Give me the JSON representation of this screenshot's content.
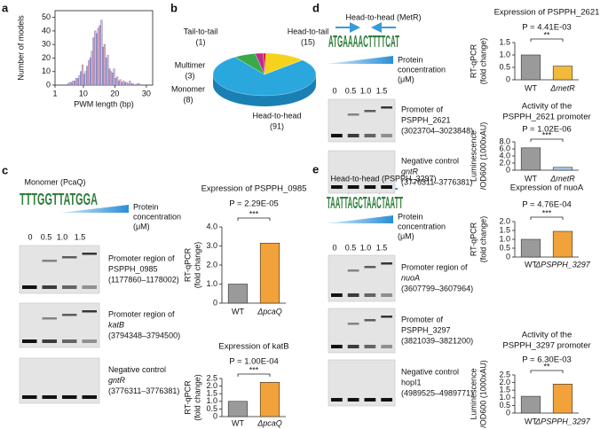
{
  "panel_labels": [
    "a",
    "b",
    "c",
    "d",
    "e"
  ],
  "chart_data": [
    {
      "type": "histogram",
      "ylabel": "Number of models",
      "xlabel": "PWM length (bp)",
      "bins": [
        5,
        6,
        7,
        8,
        9,
        10,
        11,
        12,
        13,
        14,
        15,
        16,
        17,
        18,
        19,
        20,
        21,
        22,
        23,
        24,
        25,
        26,
        27,
        28,
        29
      ],
      "series": [
        {
          "color": "#9aa6d8",
          "values": [
            1,
            2,
            3,
            5,
            10,
            8,
            14,
            20,
            35,
            38,
            44,
            28,
            20,
            12,
            9,
            5,
            3,
            2,
            2,
            1,
            1,
            0,
            1,
            0
          ]
        },
        {
          "color": "#f4b6c4",
          "values": [
            2,
            3,
            5,
            7,
            15,
            10,
            18,
            25,
            40,
            42,
            48,
            30,
            22,
            10,
            12,
            6,
            4,
            3,
            2,
            3,
            1,
            0,
            1,
            0
          ]
        }
      ],
      "xlim": [
        1,
        32
      ],
      "xticks": [
        1,
        10,
        20,
        30
      ],
      "ylim": [
        0,
        55
      ],
      "yticks": [
        0,
        10,
        20,
        30,
        40,
        50
      ]
    },
    {
      "type": "pie",
      "categories": [
        "Head-to-head",
        "Head-to-tail",
        "Tail-to-tail",
        "Multimer",
        "Monomer"
      ],
      "values": [
        91,
        15,
        1,
        3,
        8
      ],
      "value_labels": [
        "(91)",
        "(15)",
        "(1)",
        "(3)",
        "(8)"
      ],
      "colors": [
        "#2aa7dd",
        "#f5d21c",
        "#e0202a",
        "#c2288f",
        "#3aaa48"
      ]
    },
    {
      "type": "bar",
      "title": [
        "Expression of PSPPH_0985"
      ],
      "p_value": "P = 2.29E-05",
      "significance": "***",
      "ylabel": [
        "RT-qPCR",
        "(fold change)"
      ],
      "categories": [
        "WT",
        "ΔpcaQ"
      ],
      "values": [
        1.0,
        3.15
      ],
      "colors": [
        "#9a9a9a",
        "#f2a23a"
      ],
      "ylim": [
        0,
        4
      ],
      "yticks": [
        0,
        {
          "value": 1,
          "label": "1.0"
        },
        {
          "value": 2,
          "label": "2.0"
        },
        {
          "value": 3,
          "label": "3.0"
        },
        {
          "value": 4,
          "label": "4.0"
        }
      ]
    },
    {
      "type": "bar",
      "title": [
        "Expression of katB"
      ],
      "p_value": "P = 1.00E-04",
      "significance": "***",
      "ylabel": [
        "RT-qPCR",
        "(fold change)"
      ],
      "categories": [
        "WT",
        "ΔpcaQ"
      ],
      "values": [
        1.0,
        2.25
      ],
      "colors": [
        "#9a9a9a",
        "#f2a23a"
      ],
      "ylim": [
        0,
        2.5
      ],
      "yticks": [
        0,
        0.5,
        {
          "value": 1,
          "label": "1.0"
        },
        1.5,
        {
          "value": 2,
          "label": "2.0"
        },
        2.5
      ]
    },
    {
      "type": "bar",
      "title": [
        "Expression of PSPPH_2621"
      ],
      "p_value": "P = 4.41E-03",
      "significance": "**",
      "ylabel": [
        "RT-qPCR",
        "(fold change)"
      ],
      "categories": [
        "WT",
        "ΔmetR"
      ],
      "values": [
        1.0,
        0.55
      ],
      "colors": [
        "#9a9a9a",
        "#f2b93a"
      ],
      "ylim": [
        0,
        1.5
      ],
      "yticks": [
        0,
        0.5,
        {
          "value": 1,
          "label": "1.0"
        },
        1.5
      ]
    },
    {
      "type": "bar",
      "title": [
        "Activity of the",
        "PSPPH_2621 promoter"
      ],
      "p_value": "P = 1.02E-06",
      "significance": "***",
      "ylabel": [
        "Luminescence",
        "/OD600 (1000xAU)"
      ],
      "categories": [
        "WT",
        "ΔmetR"
      ],
      "values": [
        6.3,
        0.8
      ],
      "colors": [
        "#9a9a9a",
        "#a9c8ea"
      ],
      "ylim": [
        0,
        8
      ],
      "yticks": [
        0,
        {
          "value": 2,
          "label": "2.0"
        },
        {
          "value": 4,
          "label": "4.0"
        },
        {
          "value": 6,
          "label": "6.0"
        },
        {
          "value": 8,
          "label": "8.0"
        }
      ]
    },
    {
      "type": "bar",
      "title": [
        "Expression of nuoA"
      ],
      "p_value": "P = 4.76E-04",
      "significance": "***",
      "ylabel": [
        "RT-qPCR",
        "(fold change)"
      ],
      "categories": [
        "WT",
        "ΔPSPPH_3297"
      ],
      "values": [
        1.0,
        1.45
      ],
      "colors": [
        "#9a9a9a",
        "#f2a23a"
      ],
      "ylim": [
        0,
        2
      ],
      "yticks": [
        0,
        0.5,
        {
          "value": 1,
          "label": "1.0"
        },
        1.5,
        {
          "value": 2,
          "label": "2.0"
        }
      ]
    },
    {
      "type": "bar",
      "title": [
        "Activity of the",
        "PSPPH_3297 promoter"
      ],
      "p_value": "P = 6.30E-03",
      "significance": "**",
      "ylabel": [
        "Luminescence",
        "/OD600 (1000xAU)"
      ],
      "categories": [
        "WT",
        "ΔPSPPH_3297"
      ],
      "values": [
        1.1,
        1.9
      ],
      "colors": [
        "#9a9a9a",
        "#f2a23a"
      ],
      "ylim": [
        0,
        2.5
      ],
      "yticks": [
        0,
        0.5,
        {
          "value": 1,
          "label": "1.0"
        },
        1.5,
        {
          "value": 2,
          "label": "2.0"
        },
        2.5
      ]
    }
  ],
  "gels": [
    {
      "title": "Monomer (PcaQ)",
      "motif": "TTTGGTTATGGA",
      "protein_label": [
        "Protein",
        "concentration",
        "(μM)"
      ],
      "lanes": [
        "0",
        "0.5",
        "1.0",
        "1.5"
      ],
      "blots": [
        [
          "Promoter region of",
          "PSPPH_0985",
          "(1177860–1178002)"
        ],
        [
          "Promoter region of",
          "katB",
          "(3794348–3794500)"
        ],
        [
          "Negative control",
          "gntR",
          "(3776311–3776381)"
        ]
      ]
    },
    {
      "title": "Head-to-head (MetR)",
      "motif": "ATGAAAACTTTTCAT",
      "protein_label": [
        "Protein",
        "concentration",
        "(μM)"
      ],
      "lanes": [
        "0",
        "0.5",
        "1.0",
        "1.5"
      ],
      "blots": [
        [
          "Promoter of",
          "PSPPH_2621",
          "(3023704–3023848)"
        ],
        [
          "Negative control",
          "gntR",
          "(3776311–3776381)"
        ]
      ]
    },
    {
      "title": "Head-to-head (PSPPH_3297)",
      "motif": "TAATTAGCTAACTAATT",
      "protein_label": [
        "Protein",
        "concentration",
        "(μM)"
      ],
      "lanes": [
        "0",
        "0.5",
        "1.0",
        "1.5"
      ],
      "blots": [
        [
          "Promoter region of",
          "nuoA",
          "(3607799–3607964)"
        ],
        [
          "Promoter of",
          "PSPPH_3297",
          "(3821039–3821200)"
        ],
        [
          "Negative control",
          "hopI1",
          "(4989525–4989771)"
        ]
      ]
    }
  ]
}
